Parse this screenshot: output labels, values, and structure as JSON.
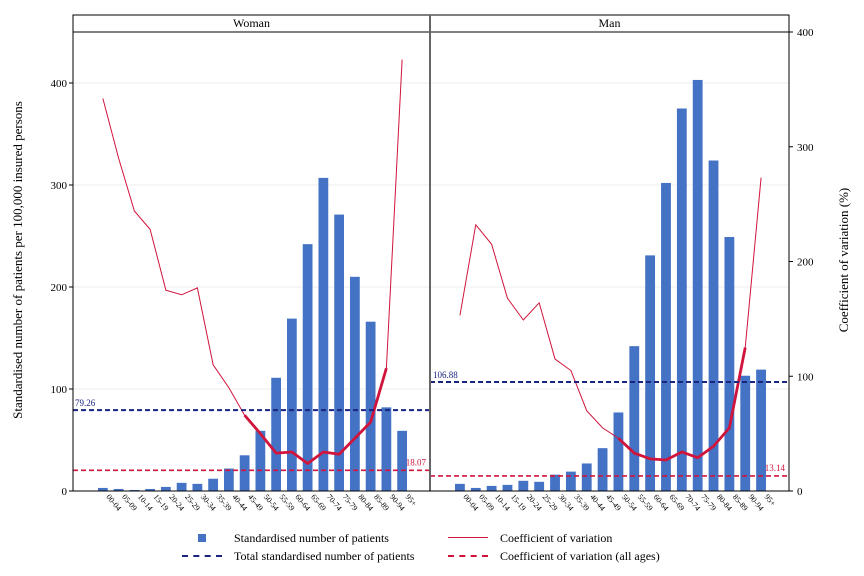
{
  "chart_data": {
    "type": "bar",
    "left_axis": {
      "label": "Standardised number of patients per 100,000 insured persons",
      "range": [
        0,
        450
      ],
      "ticks": [
        "0",
        "100",
        "200",
        "300",
        "400"
      ],
      "tick_values": [
        0,
        100,
        200,
        300,
        400
      ]
    },
    "right_axis": {
      "label": "Coefficient of variation (%)",
      "range": [
        0,
        400
      ],
      "ticks": [
        "0",
        "100",
        "200",
        "300",
        "400"
      ],
      "tick_values": [
        0,
        100,
        200,
        300,
        400
      ]
    },
    "categories": [
      "00-04",
      "05-09",
      "10-14",
      "15-19",
      "20-24",
      "25-29",
      "30-34",
      "35-39",
      "40-44",
      "45-49",
      "50-54",
      "55-59",
      "60-64",
      "65-69",
      "70-74",
      "75-79",
      "80-84",
      "85-89",
      "90-94",
      "95+"
    ],
    "grid": true,
    "colors": {
      "bars": "#4472c4",
      "cv_line": "#d0143c",
      "total_line": "#1a237e",
      "cv_all_line": "#d0143c"
    },
    "panels": [
      {
        "title": "Woman",
        "bars": [
          3,
          2,
          1,
          2,
          4,
          8,
          7,
          12,
          22,
          35,
          59,
          111,
          169,
          242,
          307,
          271,
          210,
          166,
          82,
          59
        ],
        "cv": [
          342,
          290,
          244,
          228,
          175,
          171,
          177,
          110,
          90,
          66,
          50,
          33,
          34,
          24,
          34,
          32,
          46,
          60,
          107,
          376
        ],
        "cv_bold_range": [
          9,
          18
        ],
        "total": 79.26,
        "total_label": "79.26",
        "cv_all": 18.07,
        "cv_all_label": "18.07"
      },
      {
        "title": "Man",
        "bars": [
          7,
          3,
          5,
          6,
          10,
          9,
          16,
          19,
          27,
          42,
          77,
          142,
          231,
          302,
          375,
          403,
          324,
          249,
          113,
          119
        ],
        "cv": [
          153,
          232,
          215,
          168,
          149,
          164,
          115,
          105,
          70,
          55,
          46,
          33,
          28,
          27,
          34,
          29,
          39,
          55,
          125,
          273
        ],
        "cv_bold_range": [
          10,
          18
        ],
        "total": 106.88,
        "total_label": "106.88",
        "cv_all": 13.14,
        "cv_all_label": "13.14"
      }
    ]
  },
  "legend": {
    "bars": "Standardised number of patients",
    "cv": "Coefficient of variation",
    "total": "Total standardised number of patients",
    "cv_all": "Coefficient of variation (all ages)"
  }
}
